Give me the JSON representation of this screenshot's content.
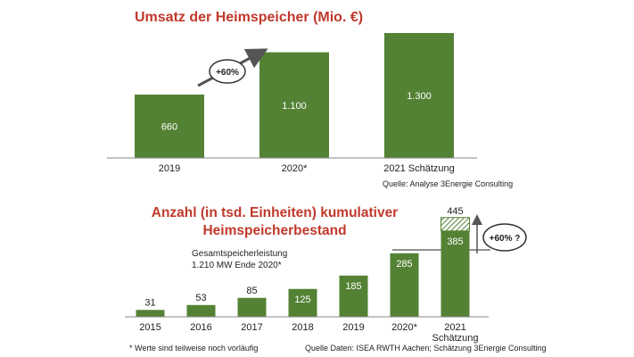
{
  "chart_data": [
    {
      "type": "bar",
      "title": "Umsatz der Heimspeicher (Mio. €)",
      "categories": [
        "2019",
        "2020*",
        "2021 Schätzung"
      ],
      "values": [
        660,
        1100,
        1300
      ],
      "value_labels": [
        "660",
        "1.100",
        "1.300"
      ],
      "annotation": "+60%",
      "source": "Quelle: Analyse 3Energie Consulting",
      "ylim": [
        0,
        1300
      ],
      "colors": {
        "bar": "#548235",
        "title": "#c0392b"
      }
    },
    {
      "type": "bar",
      "title": [
        "Anzahl (in tsd. Einheiten) kumulativer",
        "Heimspeicherbestand"
      ],
      "categories": [
        "2015",
        "2016",
        "2017",
        "2018",
        "2019",
        "2020*",
        "2021 Schätzung"
      ],
      "values": [
        31,
        53,
        85,
        125,
        185,
        285,
        385
      ],
      "value_labels": [
        "31",
        "53",
        "85",
        "125",
        "185",
        "285",
        "385"
      ],
      "stacked_top": {
        "category": "2021 Schätzung",
        "total": 445,
        "label": "445"
      },
      "annotation": "+60% ?",
      "note": [
        "Gesamtspeicherleistung",
        "1.210 MW Ende 2020*"
      ],
      "footnote": "* Werte sind teilweise noch vorläufig",
      "source": "Quelle Daten: ISEA RWTH Aachen; Schätzung 3Energie Consulting",
      "ylim": [
        0,
        445
      ],
      "colors": {
        "bar": "#548235",
        "title": "#c0392b"
      }
    }
  ]
}
